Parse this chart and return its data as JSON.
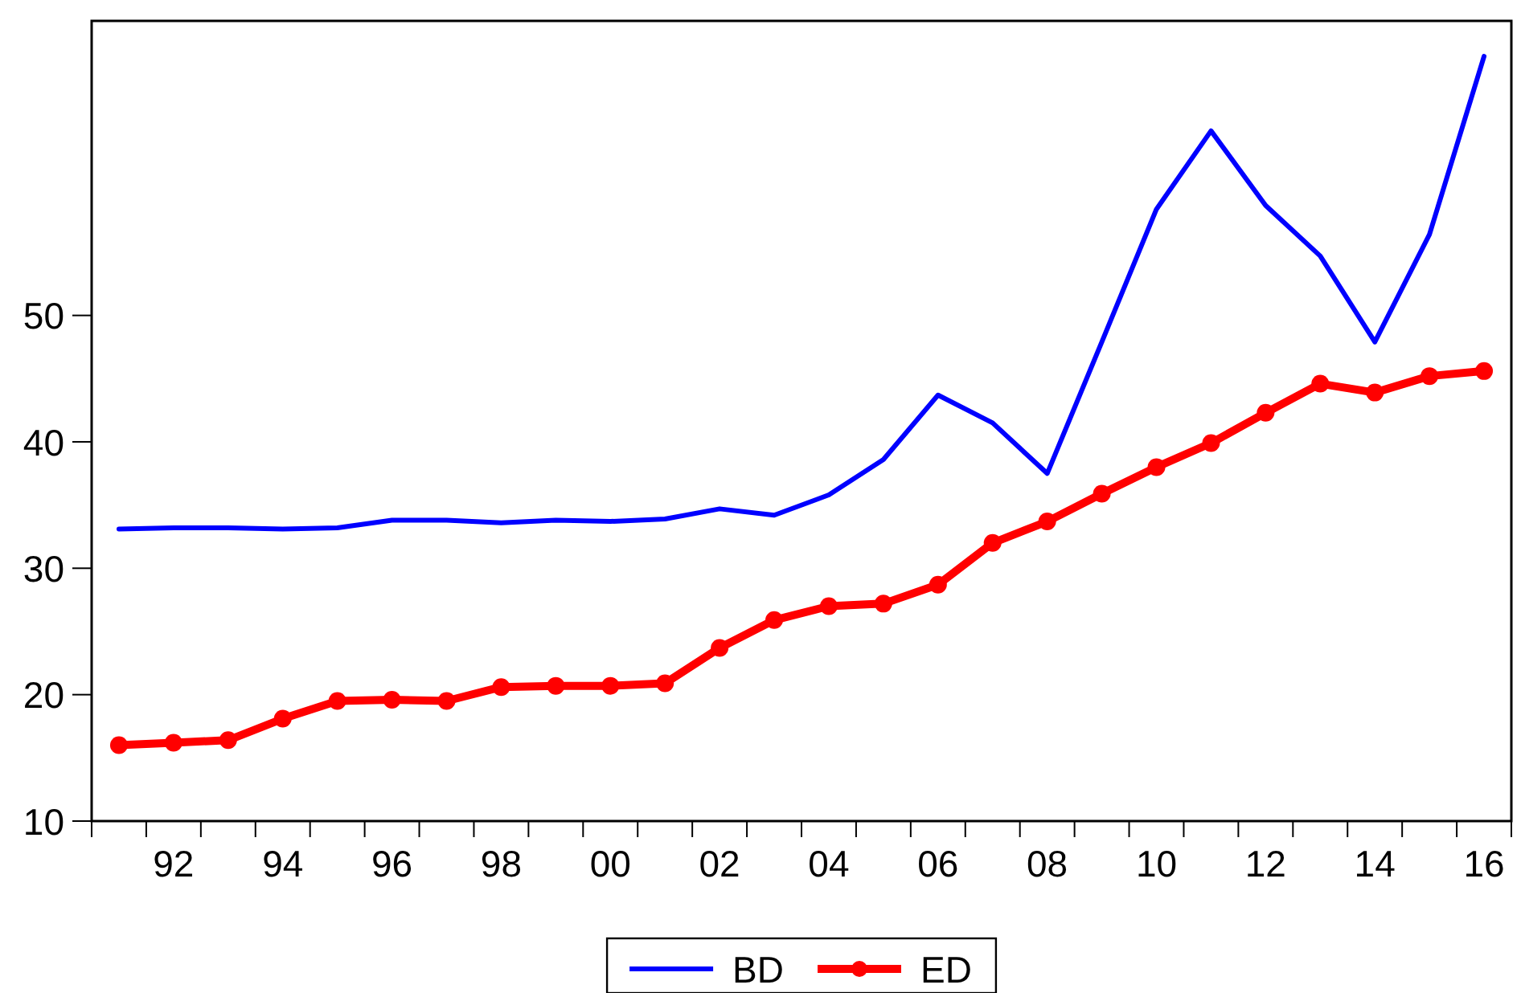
{
  "chart_data": {
    "type": "line",
    "categories": [
      null,
      "92",
      null,
      "94",
      null,
      "96",
      null,
      "98",
      null,
      "00",
      null,
      "02",
      null,
      "04",
      null,
      "06",
      null,
      "08",
      null,
      "10",
      null,
      "12",
      null,
      "14",
      null,
      "16"
    ],
    "series": [
      {
        "name": "BD",
        "color": "#0000ff",
        "marker": "none",
        "values": [
          33.1,
          33.2,
          33.2,
          33.1,
          33.2,
          33.8,
          33.8,
          33.6,
          33.8,
          33.7,
          33.9,
          34.7,
          34.2,
          35.8,
          38.6,
          43.7,
          41.5,
          37.5,
          47.9,
          58.4,
          64.6,
          58.7,
          54.7,
          47.9,
          56.4,
          70.5
        ]
      },
      {
        "name": "ED",
        "color": "#ff0000",
        "marker": "circle",
        "values": [
          16.0,
          16.2,
          16.4,
          18.1,
          19.5,
          19.6,
          19.5,
          20.6,
          20.7,
          20.7,
          20.9,
          23.7,
          25.9,
          27.0,
          27.2,
          28.7,
          32.0,
          33.7,
          35.9,
          38.0,
          39.9,
          42.3,
          44.6,
          43.9,
          45.2,
          45.6
        ]
      }
    ],
    "ylim": [
      10,
      73.3
    ],
    "yticks": [
      10,
      20,
      30,
      40,
      50
    ],
    "legend": "bottom"
  }
}
